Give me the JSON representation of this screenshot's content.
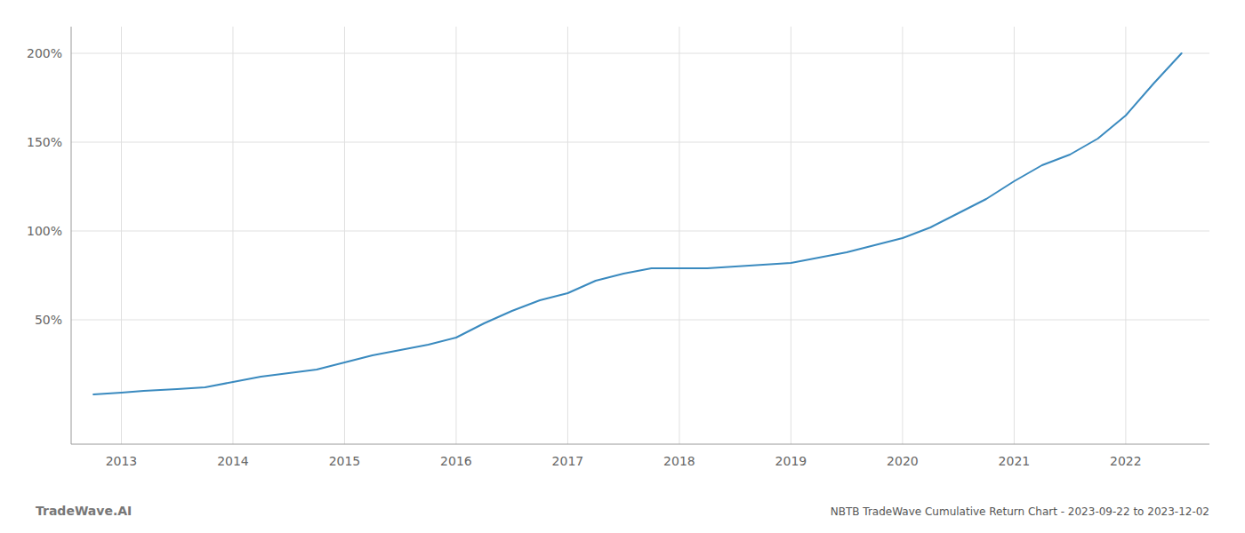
{
  "chart_data": {
    "type": "line",
    "title": "NBTB TradeWave Cumulative Return Chart - 2023-09-22 to 2023-12-02",
    "annotations": [
      "TradeWave.AI"
    ],
    "color": "#3a8abf",
    "grid": true,
    "x": [
      2012.75,
      2013.0,
      2013.2,
      2013.5,
      2013.75,
      2014.0,
      2014.25,
      2014.5,
      2014.75,
      2015.0,
      2015.25,
      2015.5,
      2015.75,
      2016.0,
      2016.25,
      2016.5,
      2016.75,
      2017.0,
      2017.25,
      2017.5,
      2017.75,
      2018.0,
      2018.25,
      2018.5,
      2018.75,
      2019.0,
      2019.25,
      2019.5,
      2019.75,
      2020.0,
      2020.25,
      2020.5,
      2020.75,
      2021.0,
      2021.25,
      2021.5,
      2021.75,
      2022.0,
      2022.25,
      2022.5
    ],
    "values": [
      8,
      9,
      10,
      11,
      12,
      15,
      18,
      20,
      22,
      26,
      30,
      33,
      36,
      40,
      48,
      55,
      61,
      65,
      72,
      76,
      79,
      79,
      79,
      80,
      81,
      82,
      85,
      88,
      92,
      96,
      102,
      110,
      118,
      128,
      137,
      143,
      152,
      165,
      183,
      200
    ],
    "xlim": [
      2012.55,
      2022.75
    ],
    "xticks": [
      2013,
      2014,
      2015,
      2016,
      2017,
      2018,
      2019,
      2020,
      2021,
      2022
    ],
    "ylim": [
      -20,
      215
    ],
    "yticks": [
      {
        "value": 50,
        "label": "50%"
      },
      {
        "value": 100,
        "label": "100%"
      },
      {
        "value": 150,
        "label": "150%"
      },
      {
        "value": 200,
        "label": "200%"
      }
    ]
  }
}
